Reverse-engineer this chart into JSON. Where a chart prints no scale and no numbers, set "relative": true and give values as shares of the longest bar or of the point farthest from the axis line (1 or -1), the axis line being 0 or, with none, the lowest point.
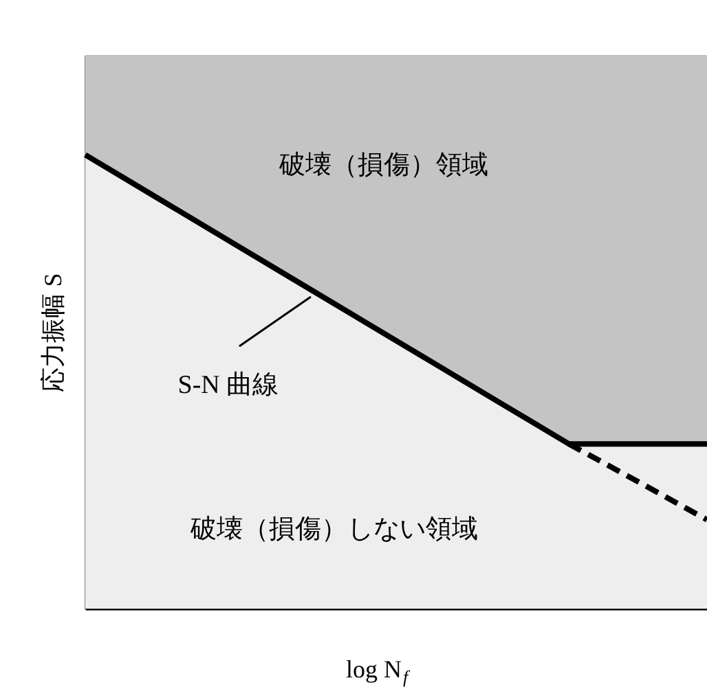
{
  "chart_data": {
    "type": "line",
    "relative": true,
    "xlabel": "log N$_{f}$",
    "ylabel": "応力振幅 S",
    "tick_labels": false,
    "categories": [
      null,
      null,
      null,
      null,
      null,
      null,
      null,
      null,
      null,
      null
    ],
    "series": [
      {
        "type": "area",
        "color": "#000000",
        "values": [
          1,
          0.909,
          0.818,
          0.727,
          0.636,
          0.545,
          0.454,
          0.363,
          0.363,
          0.363
        ]
      },
      {
        "color": "#000000",
        "line_style": "dashed",
        "values": [
          null,
          null,
          null,
          null,
          null,
          null,
          null,
          0.363,
          0.28,
          0.196
        ]
      }
    ],
    "annotations": [
      "破壊（損傷）領域",
      "破壊（損傷）しない領域",
      "S-N 曲線"
    ]
  }
}
